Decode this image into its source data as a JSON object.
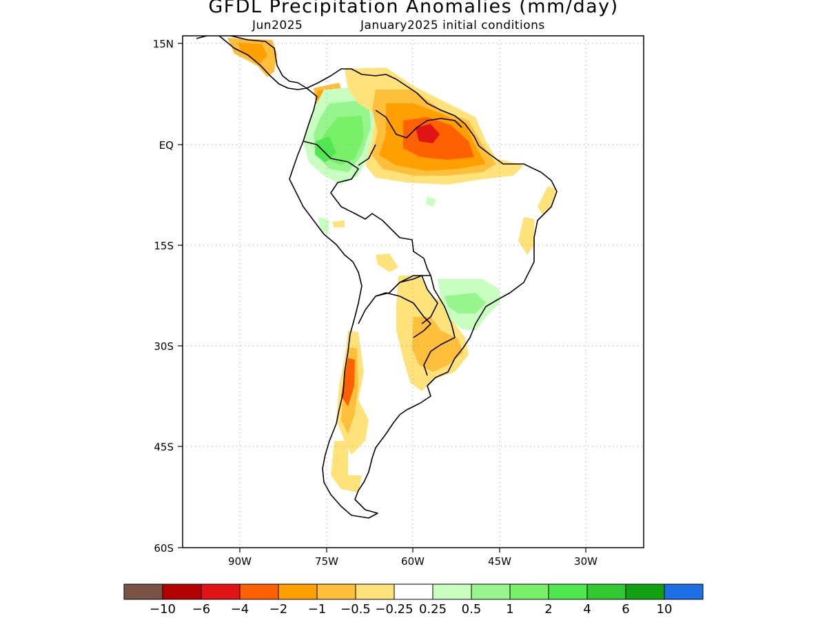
{
  "title": "GFDL Precipitation Anomalies (mm/day)",
  "subtitle": {
    "valid": "Jun2025",
    "init": "January2025 initial conditions"
  },
  "axes": {
    "lat_labels": [
      "15N",
      "EQ",
      "15S",
      "30S",
      "45S",
      "60S"
    ],
    "lon_labels": [
      "90W",
      "75W",
      "60W",
      "45W",
      "30W"
    ],
    "lat_range": [
      -60,
      15
    ],
    "lon_range": [
      -100,
      -20
    ],
    "grid": "dotted"
  },
  "colorbar": {
    "labels": [
      "-10",
      "-6",
      "-4",
      "-2",
      "-1",
      "-0.5",
      "-0.25",
      "0.25",
      "0.5",
      "1",
      "2",
      "4",
      "6",
      "10"
    ],
    "colors": [
      "#7a5246",
      "#b40000",
      "#e01414",
      "#ff6000",
      "#ff9f00",
      "#ffbf3a",
      "#ffe27a",
      "#ffffff",
      "#c8ffc0",
      "#96f58c",
      "#78f067",
      "#50e850",
      "#32c832",
      "#10a010",
      "#1e6ee6"
    ]
  },
  "anomaly_colors": {
    "dry_extreme": "#e01414",
    "dry_strong": "#ff6000",
    "dry_moderate": "#ff9f00",
    "dry_weak": "#ffbf3a",
    "dry_slight": "#ffe27a",
    "wet_slight": "#c8ffc0",
    "wet_weak": "#96f58c",
    "wet_moderate": "#50e850"
  }
}
